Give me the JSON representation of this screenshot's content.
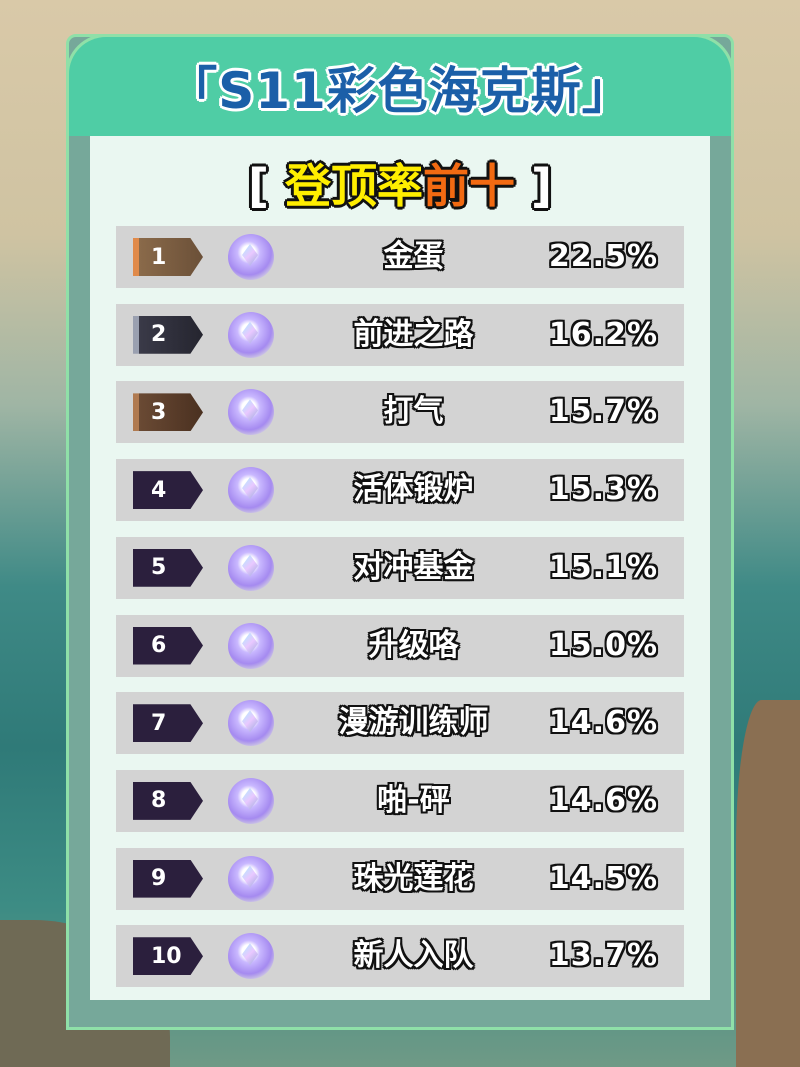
{
  "header": {
    "title": "「S11彩色海克斯」"
  },
  "subtitle": {
    "open": "[",
    "part1": "登顶率",
    "part2": "前十",
    "close": "]"
  },
  "colors": {
    "gold_badge": "#8a6a4a",
    "silver_badge": "#3a3a48",
    "bronze_badge": "#6a4a34",
    "default_badge": "#2b1f3d",
    "header_bg": "#4fcda5",
    "title": "#1b5fa8"
  },
  "rows": [
    {
      "rank": "1",
      "name": "金蛋",
      "rate": "22.5%",
      "badge": "gold",
      "icon": "egg-icon"
    },
    {
      "rank": "2",
      "name": "前进之路",
      "rate": "16.2%",
      "badge": "silver",
      "icon": "path-forward-icon"
    },
    {
      "rank": "3",
      "name": "打气",
      "rate": "15.7%",
      "badge": "bronze",
      "icon": "pump-up-icon"
    },
    {
      "rank": "4",
      "name": "活体锻炉",
      "rate": "15.3%",
      "badge": "default",
      "icon": "forge-icon"
    },
    {
      "rank": "5",
      "name": "对冲基金",
      "rate": "15.1%",
      "badge": "default",
      "icon": "money-bag-icon"
    },
    {
      "rank": "6",
      "name": "升级咯",
      "rate": "15.0%",
      "badge": "default",
      "icon": "level-up-icon"
    },
    {
      "rank": "7",
      "name": "漫游训练师",
      "rate": "14.6%",
      "badge": "default",
      "icon": "trainer-icon"
    },
    {
      "rank": "8",
      "name": "啪-砰",
      "rate": "14.6%",
      "badge": "default",
      "icon": "bang-icon"
    },
    {
      "rank": "9",
      "name": "珠光莲花",
      "rate": "14.5%",
      "badge": "default",
      "icon": "lotus-icon"
    },
    {
      "rank": "10",
      "name": "新人入队",
      "rate": "13.7%",
      "badge": "default",
      "icon": "flag-icon"
    }
  ]
}
